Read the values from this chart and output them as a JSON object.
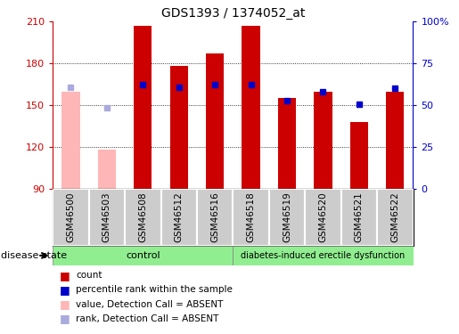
{
  "title": "GDS1393 / 1374052_at",
  "samples": [
    "GSM46500",
    "GSM46503",
    "GSM46508",
    "GSM46512",
    "GSM46516",
    "GSM46518",
    "GSM46519",
    "GSM46520",
    "GSM46521",
    "GSM46522"
  ],
  "count_values": [
    160,
    118,
    207,
    178,
    187,
    207,
    155,
    160,
    138,
    160
  ],
  "count_absent": [
    true,
    true,
    false,
    false,
    false,
    false,
    false,
    false,
    false,
    false
  ],
  "percentile_values": [
    163,
    148,
    165,
    163,
    165,
    165,
    153,
    160,
    151,
    162
  ],
  "percentile_absent": [
    true,
    true,
    false,
    false,
    false,
    false,
    false,
    false,
    false,
    false
  ],
  "ylim_left": [
    90,
    210
  ],
  "yticks_left": [
    90,
    120,
    150,
    180,
    210
  ],
  "yticks_right": [
    0,
    25,
    50,
    75,
    100
  ],
  "ytick_labels_right": [
    "0",
    "25",
    "50",
    "75",
    "100%"
  ],
  "control_count": 5,
  "group1_label": "control",
  "group2_label": "diabetes-induced erectile dysfunction",
  "disease_state_label": "disease state",
  "legend_items": [
    "count",
    "percentile rank within the sample",
    "value, Detection Call = ABSENT",
    "rank, Detection Call = ABSENT"
  ],
  "color_red": "#CC0000",
  "color_blue": "#0000CC",
  "color_pink": "#FFB6B6",
  "color_lavender": "#AAAADD",
  "color_green_light": "#90EE90",
  "color_gray_bg": "#CCCCCC",
  "bar_width": 0.5
}
